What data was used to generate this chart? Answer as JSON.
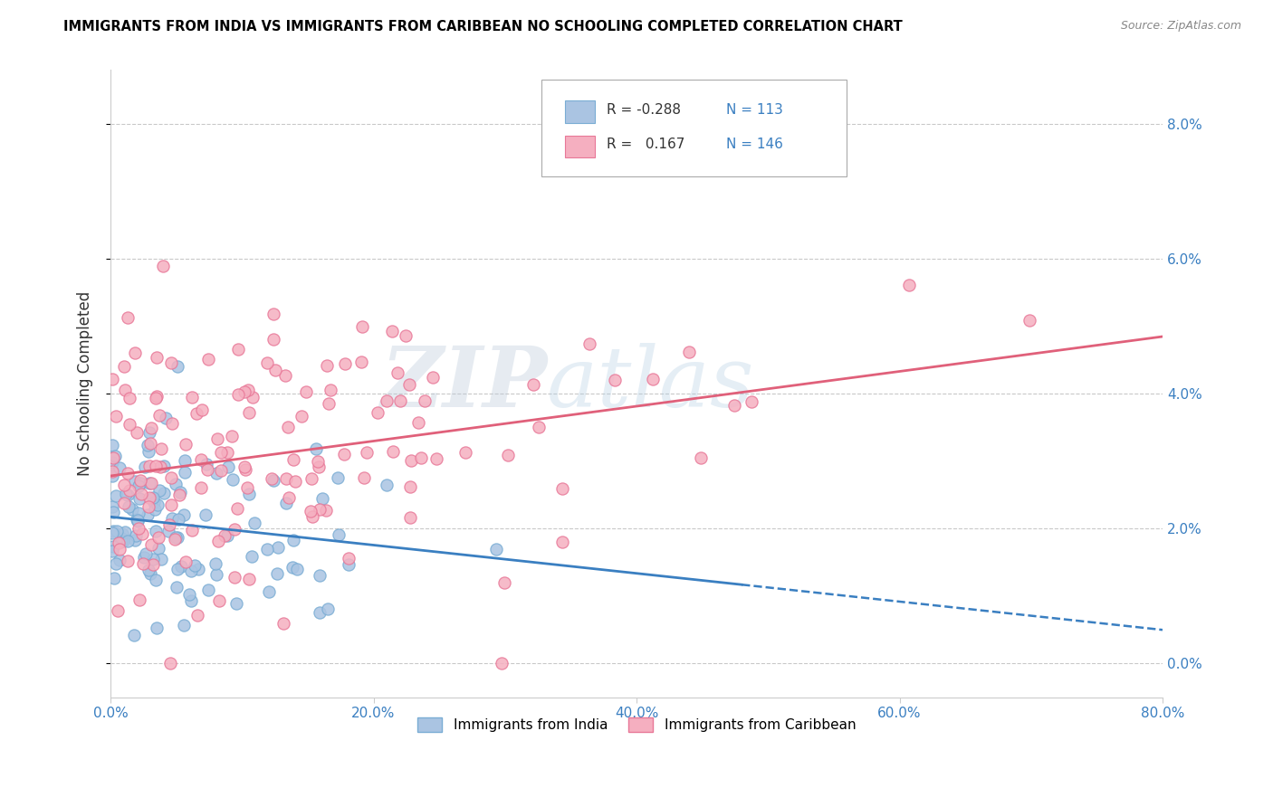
{
  "title": "IMMIGRANTS FROM INDIA VS IMMIGRANTS FROM CARIBBEAN NO SCHOOLING COMPLETED CORRELATION CHART",
  "source": "Source: ZipAtlas.com",
  "ylabel": "No Schooling Completed",
  "xlim": [
    0.0,
    0.8
  ],
  "ylim": [
    -0.005,
    0.088
  ],
  "india_color": "#aac4e2",
  "india_edge": "#7aadd4",
  "india_line_color": "#3a7fc1",
  "caribbean_color": "#f5afc0",
  "caribbean_edge": "#e87898",
  "caribbean_line_color": "#e0607a",
  "india_R": -0.288,
  "india_N": 113,
  "caribbean_R": 0.167,
  "caribbean_N": 146,
  "background": "#ffffff",
  "grid_color": "#bbbbbb",
  "watermark_zip": "ZIP",
  "watermark_atlas": "atlas",
  "india_seed": 12,
  "caribbean_seed": 99
}
